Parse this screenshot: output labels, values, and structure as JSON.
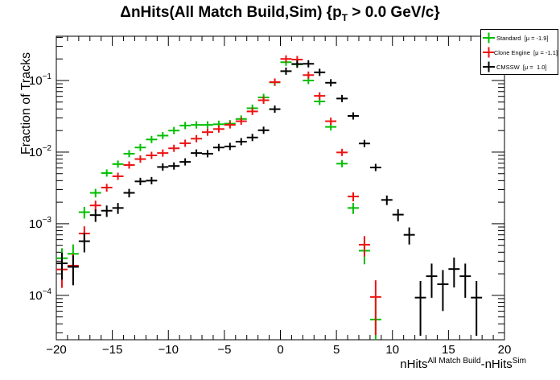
{
  "chart_data": {
    "type": "scatter",
    "title": {
      "pre": "ΔnHits(All Match Build,Sim) {p",
      "sub": "T",
      "post": " > 0.0 GeV/c}"
    },
    "ylabel": "Fraction of Tracks",
    "xlabel": {
      "p1": "nHits",
      "sup1": "All Match Build",
      "p2": "-nHits",
      "sup2": "Sim"
    },
    "xlim": [
      -20,
      20
    ],
    "ylim": [
      2.4e-05,
      0.415
    ],
    "yscale": "log",
    "grid": false,
    "x_major_step": 5,
    "x_minor_step": 1,
    "y_exponents": [
      -4,
      -3,
      -2,
      -1
    ],
    "bin_width": 1,
    "total_events_estimate": 20000,
    "legend_position": "top-right",
    "series": [
      {
        "name": "Standard",
        "mu": -1.9,
        "color": "#00bf00",
        "points": [
          [
            -19.5,
            0.00033
          ],
          [
            -18.5,
            0.00038
          ],
          [
            -17.5,
            0.00145
          ],
          [
            -16.5,
            0.0027
          ],
          [
            -15.5,
            0.0051
          ],
          [
            -14.5,
            0.0068
          ],
          [
            -13.5,
            0.0095
          ],
          [
            -12.5,
            0.0116
          ],
          [
            -11.5,
            0.015
          ],
          [
            -10.5,
            0.017
          ],
          [
            -9.5,
            0.02
          ],
          [
            -8.5,
            0.0235
          ],
          [
            -7.5,
            0.024
          ],
          [
            -6.5,
            0.024
          ],
          [
            -5.5,
            0.0245
          ],
          [
            -4.5,
            0.025
          ],
          [
            -3.5,
            0.029
          ],
          [
            -2.5,
            0.041
          ],
          [
            -1.5,
            0.058
          ],
          [
            -0.5,
            0.094
          ],
          [
            0.5,
            0.18
          ],
          [
            1.5,
            0.168
          ],
          [
            2.5,
            0.1
          ],
          [
            3.5,
            0.051
          ],
          [
            4.5,
            0.0225
          ],
          [
            5.5,
            0.0069
          ],
          [
            6.5,
            0.00166
          ],
          [
            7.5,
            0.00042
          ],
          [
            8.5,
            4.6e-05
          ]
        ]
      },
      {
        "name": "Clone Engine",
        "mu": -1.1,
        "color": "#ed1212",
        "points": [
          [
            -19.5,
            0.00023
          ],
          [
            -18.5,
            0.00026
          ],
          [
            -17.5,
            0.00073
          ],
          [
            -16.5,
            0.0018
          ],
          [
            -15.5,
            0.0032
          ],
          [
            -14.5,
            0.0046
          ],
          [
            -13.5,
            0.0066
          ],
          [
            -12.5,
            0.008
          ],
          [
            -11.5,
            0.009
          ],
          [
            -10.5,
            0.0097
          ],
          [
            -9.5,
            0.0113
          ],
          [
            -8.5,
            0.0133
          ],
          [
            -7.5,
            0.0154
          ],
          [
            -6.5,
            0.019
          ],
          [
            -5.5,
            0.021
          ],
          [
            -4.5,
            0.024
          ],
          [
            -3.5,
            0.027
          ],
          [
            -2.5,
            0.037
          ],
          [
            -1.5,
            0.053
          ],
          [
            -0.5,
            0.095
          ],
          [
            0.5,
            0.2
          ],
          [
            1.5,
            0.196
          ],
          [
            2.5,
            0.119
          ],
          [
            3.5,
            0.061
          ],
          [
            4.5,
            0.027
          ],
          [
            5.5,
            0.0099
          ],
          [
            6.5,
            0.0024
          ],
          [
            7.5,
            0.00051
          ],
          [
            8.5,
            9.5e-05
          ]
        ]
      },
      {
        "name": "CMSSW",
        "mu": 1.0,
        "color": "#000000",
        "points": [
          [
            -19.5,
            0.00028
          ],
          [
            -18.5,
            0.00025
          ],
          [
            -17.5,
            0.00057
          ],
          [
            -16.5,
            0.00132
          ],
          [
            -15.5,
            0.00152
          ],
          [
            -14.5,
            0.00166
          ],
          [
            -13.5,
            0.0027
          ],
          [
            -12.5,
            0.0039
          ],
          [
            -11.5,
            0.004
          ],
          [
            -10.5,
            0.0062
          ],
          [
            -9.5,
            0.0064
          ],
          [
            -8.5,
            0.0073
          ],
          [
            -7.5,
            0.0097
          ],
          [
            -6.5,
            0.0095
          ],
          [
            -5.5,
            0.0116
          ],
          [
            -4.5,
            0.012
          ],
          [
            -3.5,
            0.014
          ],
          [
            -2.5,
            0.016
          ],
          [
            -1.5,
            0.0202
          ],
          [
            -0.5,
            0.0398
          ],
          [
            0.5,
            0.135
          ],
          [
            1.5,
            0.17
          ],
          [
            2.5,
            0.171
          ],
          [
            3.5,
            0.13
          ],
          [
            4.5,
            0.093
          ],
          [
            5.5,
            0.056
          ],
          [
            6.5,
            0.032
          ],
          [
            7.5,
            0.0132
          ],
          [
            8.5,
            0.0061
          ],
          [
            9.5,
            0.00215
          ],
          [
            10.5,
            0.00134
          ],
          [
            11.5,
            0.0007
          ],
          [
            12.5,
            9.3e-05
          ],
          [
            13.5,
            0.000185
          ],
          [
            14.5,
            0.000143
          ],
          [
            15.5,
            0.000233
          ],
          [
            16.5,
            0.000185
          ],
          [
            17.5,
            9.3e-05
          ]
        ]
      }
    ]
  },
  "legend": {
    "entries": [
      {
        "label": "Standard  [μ = -1.9]",
        "color": "#00bf00"
      },
      {
        "label": "Clone Engine  [μ = -1.1]",
        "color": "#ed1212"
      },
      {
        "label": "CMSSW  [μ =  1.0]",
        "color": "#000000"
      }
    ]
  }
}
